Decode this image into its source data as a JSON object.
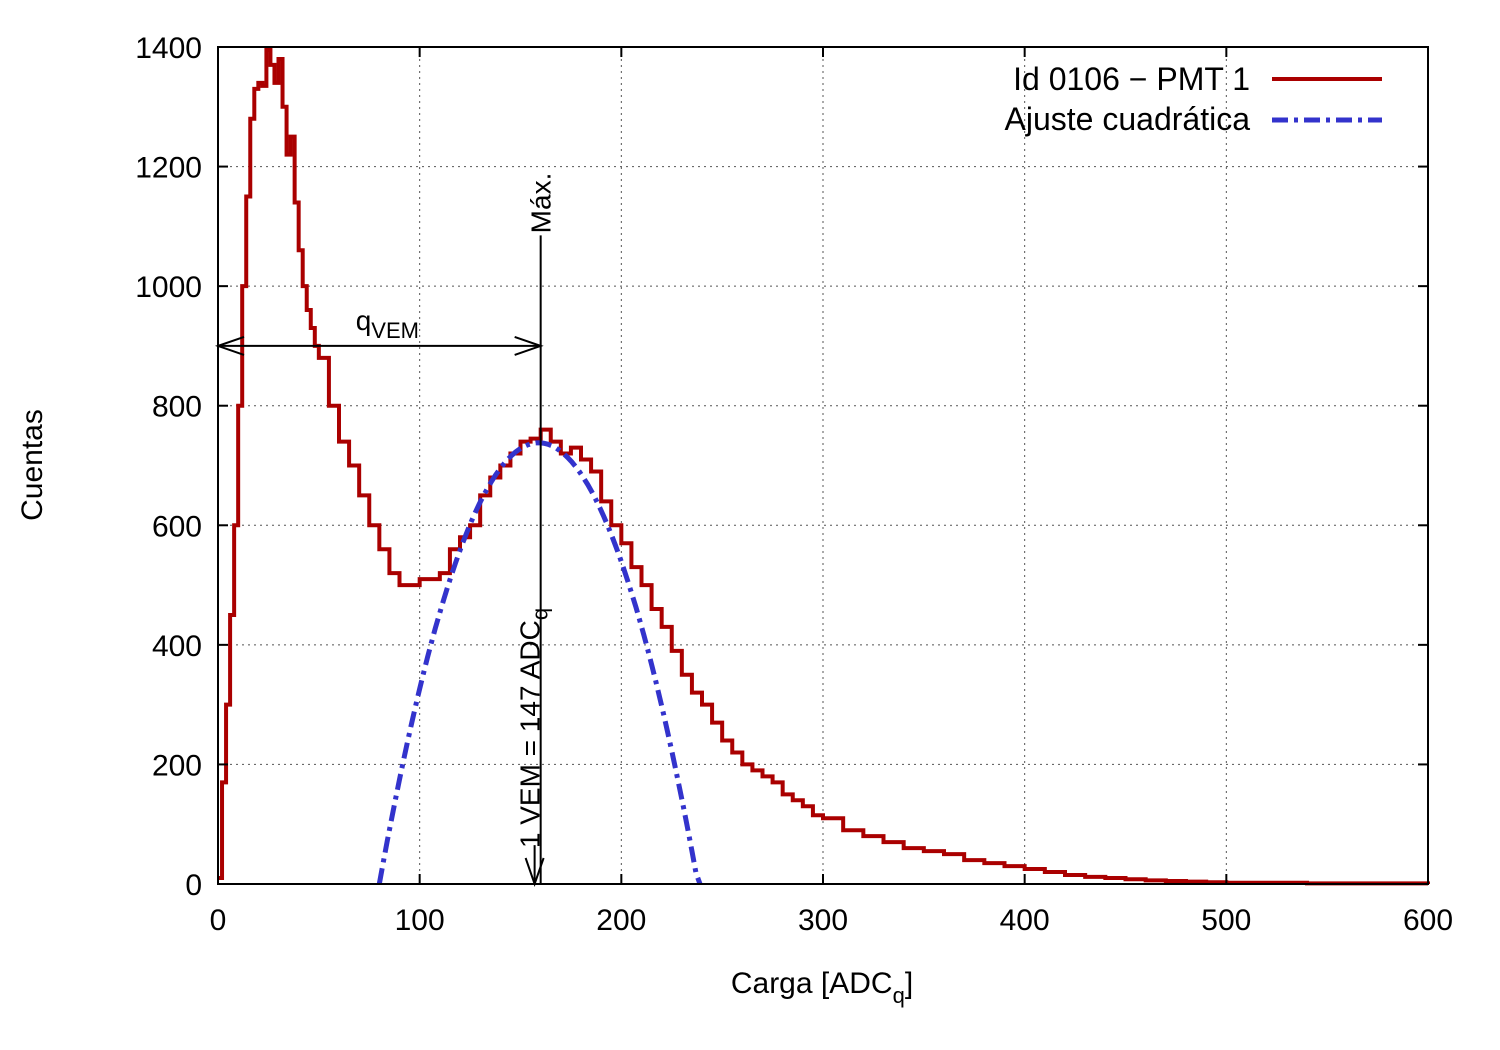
{
  "chart_data": {
    "type": "line",
    "xlabel": "Carga [ADC",
    "xlabel_sub": "q",
    "xlabel_tail": "]",
    "ylabel": "Cuentas",
    "xlim": [
      0,
      600
    ],
    "ylim": [
      0,
      1400
    ],
    "xticks": [
      0,
      100,
      200,
      300,
      400,
      500,
      600
    ],
    "yticks": [
      0,
      200,
      400,
      600,
      800,
      1000,
      1200,
      1400
    ],
    "grid": true,
    "legend_position": "top-right",
    "series": [
      {
        "name": "Id 0106 − PMT 1",
        "color": "#aa0000",
        "style": "steps",
        "x": [
          0,
          2,
          4,
          6,
          8,
          10,
          12,
          14,
          16,
          18,
          20,
          22,
          24,
          26,
          28,
          30,
          32,
          34,
          36,
          38,
          40,
          42,
          44,
          46,
          48,
          50,
          55,
          60,
          65,
          70,
          75,
          80,
          85,
          90,
          95,
          100,
          105,
          110,
          115,
          120,
          125,
          130,
          135,
          140,
          145,
          150,
          155,
          160,
          165,
          170,
          175,
          180,
          185,
          190,
          195,
          200,
          205,
          210,
          215,
          220,
          225,
          230,
          235,
          240,
          245,
          250,
          255,
          260,
          265,
          270,
          275,
          280,
          285,
          290,
          295,
          300,
          310,
          320,
          330,
          340,
          350,
          360,
          370,
          380,
          390,
          400,
          410,
          420,
          430,
          440,
          450,
          460,
          470,
          480,
          490,
          500,
          520,
          540,
          560,
          580,
          600
        ],
        "y": [
          10,
          170,
          300,
          450,
          600,
          800,
          1000,
          1150,
          1280,
          1330,
          1340,
          1335,
          1395,
          1370,
          1340,
          1380,
          1300,
          1220,
          1250,
          1140,
          1060,
          1000,
          960,
          930,
          900,
          880,
          800,
          740,
          700,
          650,
          600,
          560,
          520,
          500,
          500,
          510,
          510,
          520,
          560,
          580,
          600,
          650,
          680,
          700,
          720,
          740,
          745,
          760,
          740,
          720,
          730,
          710,
          690,
          640,
          600,
          570,
          530,
          500,
          460,
          430,
          390,
          350,
          320,
          300,
          270,
          240,
          220,
          200,
          190,
          180,
          170,
          150,
          140,
          130,
          115,
          110,
          90,
          80,
          70,
          60,
          55,
          50,
          40,
          35,
          30,
          25,
          20,
          15,
          12,
          10,
          8,
          6,
          5,
          4,
          3,
          2,
          2,
          1,
          1,
          1,
          0
        ]
      },
      {
        "name": "Ajuste cuadrática",
        "color": "#3333cc",
        "style": "dash-dot",
        "vertex_x": 159,
        "vertex_y": 738,
        "x_from": 80,
        "x_to": 239
      }
    ],
    "annotations": {
      "qvem": "q",
      "qvem_sub": "VEM",
      "max_label": "Máx.",
      "max_x": 160,
      "vem_label": "1 VEM = 147 ADC",
      "vem_label_sub": "q",
      "vem_x": 157,
      "arrow_y": 900
    }
  }
}
